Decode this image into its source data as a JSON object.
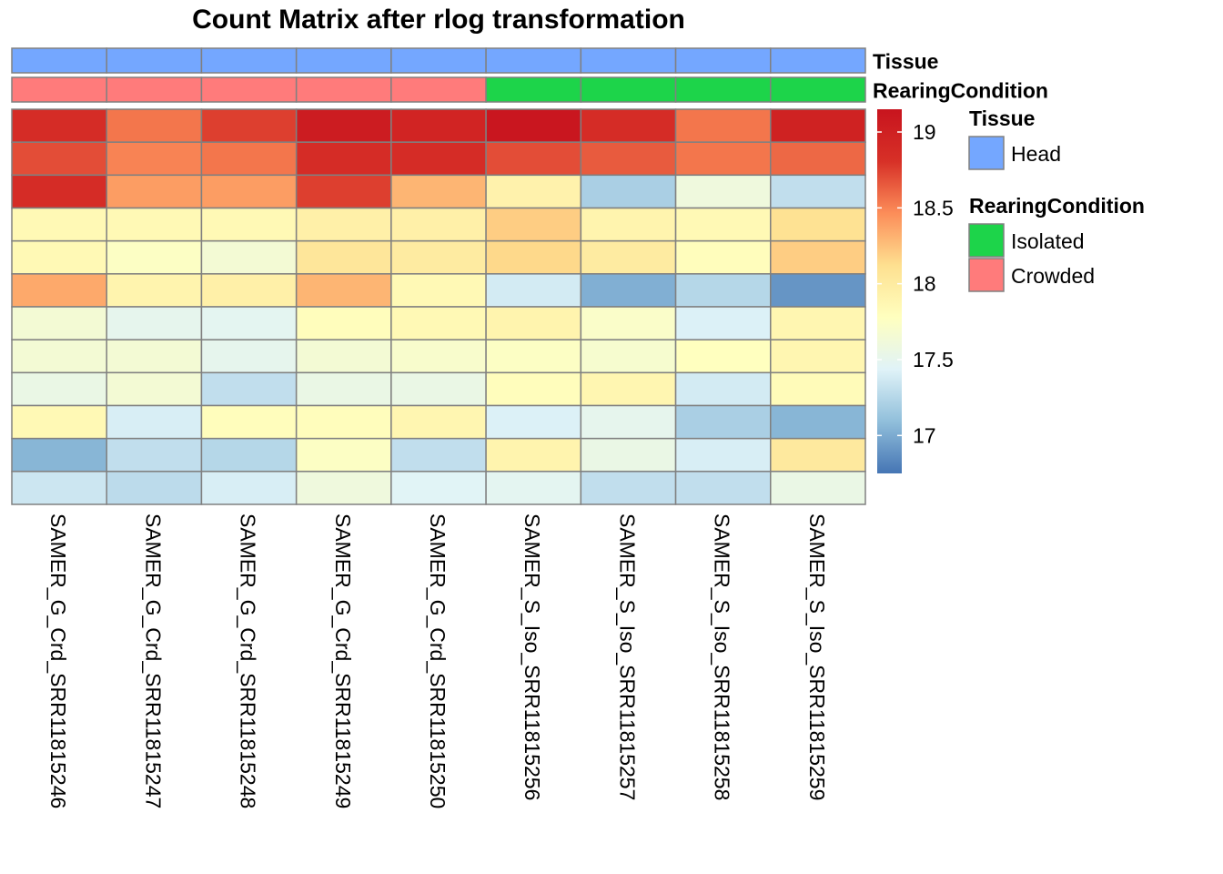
{
  "title": "Count Matrix after rlog transformation",
  "chart_data": {
    "type": "heatmap",
    "title": "Count Matrix after rlog transformation",
    "columns": [
      "SAMER_G_Crd_SRR11815246",
      "SAMER_G_Crd_SRR11815247",
      "SAMER_G_Crd_SRR11815248",
      "SAMER_G_Crd_SRR11815249",
      "SAMER_G_Crd_SRR11815250",
      "SAMER_S_Iso_SRR11815256",
      "SAMER_S_Iso_SRR11815257",
      "SAMER_S_Iso_SRR11815258",
      "SAMER_S_Iso_SRR11815259"
    ],
    "values": [
      [
        18.85,
        18.55,
        18.75,
        19.05,
        18.95,
        19.12,
        18.85,
        18.55,
        18.98
      ],
      [
        18.7,
        18.5,
        18.55,
        18.85,
        18.85,
        18.7,
        18.65,
        18.55,
        18.6
      ],
      [
        18.85,
        18.4,
        18.4,
        18.75,
        18.3,
        17.92,
        17.2,
        17.6,
        17.3
      ],
      [
        17.85,
        17.85,
        17.85,
        17.95,
        17.95,
        18.2,
        17.9,
        17.85,
        18.1
      ],
      [
        17.85,
        17.75,
        17.65,
        18.05,
        18.0,
        18.15,
        18.0,
        17.8,
        18.2
      ],
      [
        18.35,
        17.9,
        17.95,
        18.3,
        17.85,
        17.38,
        17.02,
        17.25,
        16.9
      ],
      [
        17.65,
        17.5,
        17.48,
        17.8,
        17.85,
        17.9,
        17.72,
        17.42,
        17.88
      ],
      [
        17.65,
        17.65,
        17.5,
        17.65,
        17.7,
        17.75,
        17.68,
        17.78,
        17.88
      ],
      [
        17.55,
        17.65,
        17.3,
        17.55,
        17.55,
        17.8,
        17.88,
        17.38,
        17.82
      ],
      [
        17.85,
        17.4,
        17.8,
        17.8,
        17.88,
        17.42,
        17.5,
        17.2,
        17.05
      ],
      [
        17.05,
        17.3,
        17.25,
        17.75,
        17.3,
        17.9,
        17.55,
        17.4,
        18.02
      ],
      [
        17.35,
        17.28,
        17.4,
        17.6,
        17.45,
        17.48,
        17.3,
        17.3,
        17.55
      ]
    ],
    "color_scale": {
      "min": 16.75,
      "max": 19.15,
      "ticks": [
        17,
        17.5,
        18,
        18.5,
        19
      ],
      "tick_labels": [
        "17",
        "17.5",
        "18",
        "18.5",
        "19"
      ],
      "colors": [
        "#4575b4",
        "#91bfdb",
        "#e0f3f8",
        "#ffffbf",
        "#fee090",
        "#fc8d59",
        "#d73027",
        "#c8141e"
      ]
    },
    "annotation_rows": [
      {
        "name": "Tissue",
        "values": [
          "Head",
          "Head",
          "Head",
          "Head",
          "Head",
          "Head",
          "Head",
          "Head",
          "Head"
        ]
      },
      {
        "name": "RearingCondition",
        "values": [
          "Crowded",
          "Crowded",
          "Crowded",
          "Crowded",
          "Crowded",
          "Isolated",
          "Isolated",
          "Isolated",
          "Isolated"
        ]
      }
    ],
    "annotation_legends": [
      {
        "title": "Tissue",
        "items": [
          {
            "label": "Head",
            "color": "#74a7ff"
          }
        ]
      },
      {
        "title": "RearingCondition",
        "items": [
          {
            "label": "Isolated",
            "color": "#1dd44a"
          },
          {
            "label": "Crowded",
            "color": "#ff7b7b"
          }
        ]
      }
    ],
    "grid": true,
    "border_color": "#808080"
  }
}
